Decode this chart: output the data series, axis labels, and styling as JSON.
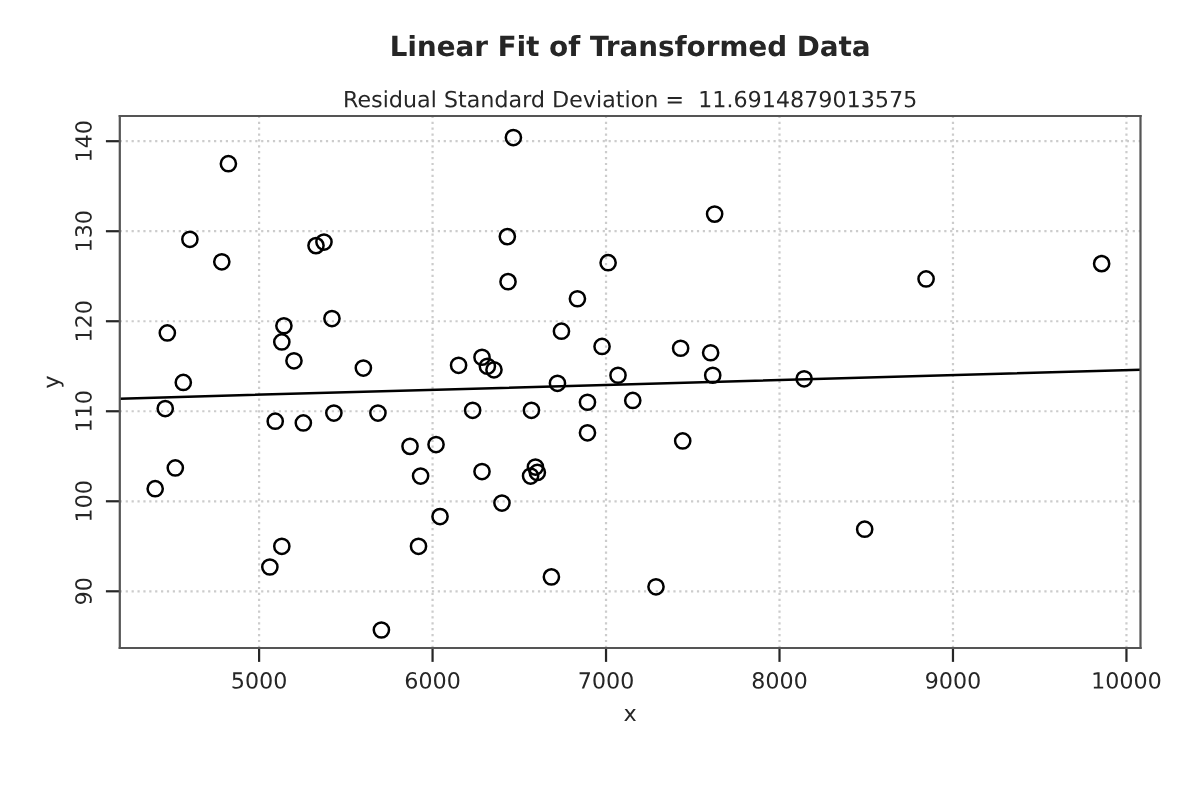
{
  "chart_data": {
    "type": "scatter",
    "title": "Linear Fit of Transformed Data",
    "subtitle": "Residual Standard Deviation =  11.6914879013575",
    "xlabel": "x",
    "ylabel": "y",
    "xlim": [
      4197,
      10081
    ],
    "ylim": [
      83.7,
      142.8
    ],
    "xticks": [
      5000,
      6000,
      7000,
      8000,
      9000,
      10000
    ],
    "yticks": [
      90,
      100,
      110,
      120,
      130,
      140
    ],
    "grid": true,
    "series": [
      {
        "marker": "circle",
        "color": "#000000",
        "x": [
          4401,
          4459,
          4471,
          4517,
          4563,
          4601,
          4785,
          4823,
          5062,
          5093,
          5131,
          5131,
          5143,
          5201,
          5255,
          5328,
          5374,
          5420,
          5431,
          5601,
          5685,
          5705,
          5870,
          5931,
          5919,
          6020,
          6043,
          6150,
          6231,
          6285,
          6285,
          6316,
          6354,
          6400,
          6431,
          6435,
          6466,
          6570,
          6565,
          6593,
          6604,
          6685,
          6720,
          6743,
          6835,
          6893,
          6893,
          6977,
          7012,
          7069,
          7154,
          7288,
          7430,
          7442,
          7626,
          7603,
          7615,
          8142,
          8491,
          8845,
          9857
        ],
        "values": [
          101.4,
          110.3,
          118.7,
          103.7,
          113.2,
          129.1,
          126.6,
          137.5,
          92.7,
          108.9,
          95.0,
          117.7,
          119.5,
          115.6,
          108.7,
          128.4,
          128.8,
          120.3,
          109.8,
          114.8,
          109.8,
          85.7,
          106.1,
          102.8,
          95.0,
          106.3,
          98.3,
          115.1,
          110.1,
          116.0,
          103.3,
          115.0,
          114.6,
          99.8,
          129.4,
          124.4,
          140.4,
          110.1,
          102.8,
          103.8,
          103.2,
          91.6,
          113.1,
          118.9,
          122.5,
          111.0,
          107.6,
          117.2,
          126.5,
          114.0,
          111.2,
          90.5,
          117.0,
          106.7,
          131.9,
          116.5,
          114.0,
          113.6,
          96.9,
          124.7,
          126.4
        ]
      },
      {
        "type": "line",
        "marker": "none",
        "color": "#000000",
        "x": [
          4197,
          10081
        ],
        "values": [
          111.4,
          114.6
        ]
      }
    ]
  }
}
